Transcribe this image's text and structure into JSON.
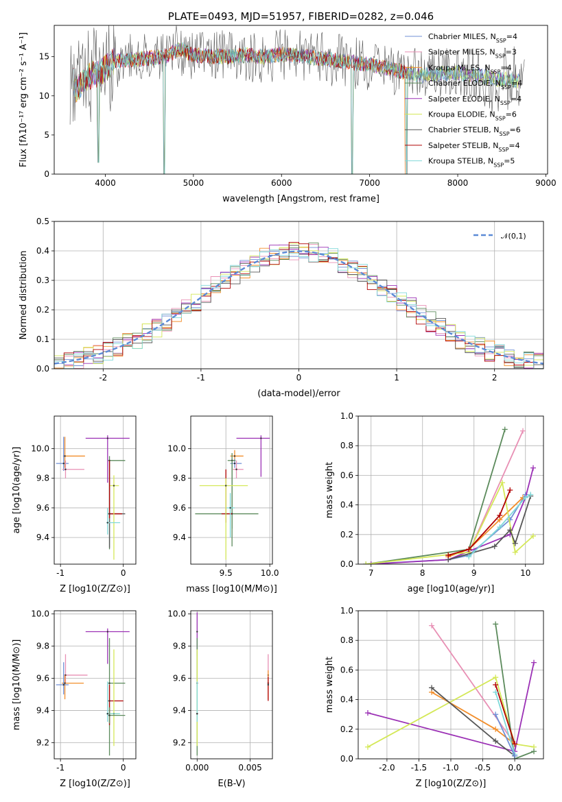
{
  "chart_data": [
    {
      "id": "spectrum",
      "type": "line",
      "title": "PLATE=0493, MJD=51957, FIBERID=0282, z=0.046",
      "xlabel": "wavelength [Angstrom, rest frame]",
      "ylabel": "Flux [f_λ10^{-17} erg cm^{-2} s^{-1} A^{-1}]",
      "xlim": [
        3420,
        9020
      ],
      "ylim": [
        0,
        19
      ],
      "xticks": [
        "4000",
        "5000",
        "6000",
        "7000",
        "8000",
        "9000"
      ],
      "yticks": [
        "0",
        "5",
        "10",
        "15"
      ],
      "legend_position": "upper right",
      "legend": [
        {
          "label": "Chabrier MILES, N_SSP=4",
          "color": "#6f8fd6"
        },
        {
          "label": "Salpeter MILES, N_SSP=3",
          "color": "#e88fb4"
        },
        {
          "label": "Kroupa MILES, N_SSP=4",
          "color": "#f28e2b"
        },
        {
          "label": "Chabrier ELODIE, N_SSP=4",
          "color": "#5b8a5b"
        },
        {
          "label": "Salpeter ELODIE, N_SSP=4",
          "color": "#9b30b5"
        },
        {
          "label": "Kroupa ELODIE, N_SSP=6",
          "color": "#d4e857"
        },
        {
          "label": "Chabrier STELIB, N_SSP=6",
          "color": "#555555"
        },
        {
          "label": "Salpeter STELIB, N_SSP=4",
          "color": "#b00000"
        },
        {
          "label": "Kroupa STELIB, N_SSP=5",
          "color": "#7fd8d8"
        }
      ],
      "continuum": {
        "wavelength": [
          3650,
          3800,
          3950,
          4100,
          4300,
          4500,
          4700,
          4850,
          5000,
          5200,
          5400,
          5600,
          5800,
          6000,
          6200,
          6400,
          6600,
          6800,
          7000,
          7200,
          7400,
          7600,
          7800,
          8000,
          8200,
          8400,
          8600,
          8800
        ],
        "flux": [
          10.5,
          12.5,
          13.0,
          14.5,
          14.6,
          14.8,
          15.1,
          16.0,
          15.2,
          15.0,
          15.0,
          15.2,
          15.0,
          15.3,
          15.1,
          14.8,
          14.6,
          14.2,
          14.0,
          13.5,
          13.0,
          12.6,
          12.8,
          12.9,
          12.7,
          12.2,
          12.0,
          11.8
        ]
      },
      "dips": [
        {
          "wavelength": 3920,
          "flux": 1.5
        },
        {
          "wavelength": 4670,
          "flux": 0
        },
        {
          "wavelength": 6800,
          "flux": 0
        },
        {
          "wavelength": 7420,
          "flux": 0
        }
      ]
    },
    {
      "id": "residuals",
      "type": "line",
      "xlabel": "(data-model)/error",
      "ylabel": "Normed distribution",
      "xlim": [
        -2.5,
        2.5
      ],
      "ylim": [
        0,
        0.5
      ],
      "xticks": [
        "-2",
        "-1",
        "0",
        "1",
        "2"
      ],
      "yticks": [
        "0.0",
        "0.1",
        "0.2",
        "0.3",
        "0.4",
        "0.5"
      ],
      "grid": true,
      "legend_position": "upper right",
      "series": [
        {
          "name": "𝒩(0,1)",
          "kind": "gaussian",
          "mu": 0,
          "sigma": 1,
          "color": "#5b8ad6"
        }
      ]
    },
    {
      "id": "z_age",
      "type": "scatter",
      "xlabel": "Z [log10(Z/Z⊙)]",
      "ylabel": "age  [log10(age/yr)]",
      "xlim": [
        -1.1,
        0.2
      ],
      "ylim": [
        9.22,
        10.22
      ],
      "xticks": [
        "-1",
        "0"
      ],
      "yticks": [
        "9.4",
        "9.6",
        "9.8",
        "10.0"
      ],
      "grid": true,
      "points": [
        {
          "x": -0.93,
          "y": 9.95,
          "xerr": [
            0.03,
            0.32
          ],
          "yerr": [
            0.08,
            0.13
          ],
          "color": "#f28e2b"
        },
        {
          "x": -0.95,
          "y": 9.9,
          "xerr": [
            0.12,
            0.08
          ],
          "yerr": [
            0.05,
            0.18
          ],
          "color": "#6f8fd6"
        },
        {
          "x": -0.92,
          "y": 9.86,
          "xerr": [
            0.05,
            0.3
          ],
          "yerr": [
            0.06,
            0.06
          ],
          "color": "#e88fb4"
        },
        {
          "x": -0.25,
          "y": 10.07,
          "xerr": [
            0.35,
            0.35
          ],
          "yerr": [
            0.3,
            0.02
          ],
          "color": "#9b30b5"
        },
        {
          "x": -0.22,
          "y": 9.92,
          "xerr": [
            0.02,
            0.25
          ],
          "yerr": [
            0.6,
            0.03
          ],
          "color": "#5b8a5b"
        },
        {
          "x": -0.22,
          "y": 9.56,
          "xerr": [
            0.02,
            0.25
          ],
          "yerr": [
            0.23,
            0.36
          ],
          "color": "#555555"
        },
        {
          "x": -0.22,
          "y": 9.56,
          "xerr": [
            0.02,
            0.2
          ],
          "yerr": [
            0.03,
            0.36
          ],
          "color": "#b00000"
        },
        {
          "x": -0.15,
          "y": 9.75,
          "xerr": [
            0.06,
            0.08
          ],
          "yerr": [
            0.5,
            0.07
          ],
          "color": "#d4e857"
        },
        {
          "x": -0.25,
          "y": 9.5,
          "xerr": [
            0.02,
            0.2
          ],
          "yerr": [
            0.08,
            0.1
          ],
          "color": "#7fd8d8"
        }
      ]
    },
    {
      "id": "mass_age",
      "type": "scatter",
      "xlabel": "mass [log10(M/M⊙)]",
      "ylabel": "",
      "xlim": [
        9.1,
        10.03
      ],
      "ylim": [
        9.22,
        10.22
      ],
      "xticks": [
        "9.5",
        "10.0"
      ],
      "yticks": [
        "9.4",
        "9.6",
        "9.8",
        "10.0"
      ],
      "grid": true,
      "points": [
        {
          "x": 9.6,
          "y": 9.95,
          "xerr": [
            0.05,
            0.1
          ],
          "yerr": [
            0.05,
            0.04
          ],
          "color": "#f28e2b"
        },
        {
          "x": 9.6,
          "y": 9.9,
          "xerr": [
            0.05,
            0.08
          ],
          "yerr": [
            0.03,
            0.03
          ],
          "color": "#6f8fd6"
        },
        {
          "x": 9.62,
          "y": 9.86,
          "xerr": [
            0.04,
            0.08
          ],
          "yerr": [
            0.06,
            0.06
          ],
          "color": "#e88fb4"
        },
        {
          "x": 9.9,
          "y": 10.07,
          "xerr": [
            0.28,
            0.1
          ],
          "yerr": [
            0.26,
            0.02
          ],
          "color": "#9b30b5"
        },
        {
          "x": 9.57,
          "y": 9.92,
          "xerr": [
            0.05,
            0.04
          ],
          "yerr": [
            0.58,
            0.05
          ],
          "color": "#5b8a5b"
        },
        {
          "x": 9.57,
          "y": 9.56,
          "xerr": [
            0.42,
            0.3
          ],
          "yerr": [
            0.1,
            0.36
          ],
          "color": "#5b8a5b"
        },
        {
          "x": 9.5,
          "y": 9.56,
          "xerr": [
            0.05,
            0.07
          ],
          "yerr": [
            0.06,
            0.3
          ],
          "color": "#b00000"
        },
        {
          "x": 9.5,
          "y": 9.75,
          "xerr": [
            0.3,
            0.25
          ],
          "yerr": [
            0.5,
            0.05
          ],
          "color": "#d4e857"
        },
        {
          "x": 9.55,
          "y": 9.6,
          "xerr": [
            0.04,
            0.05
          ],
          "yerr": [
            0.2,
            0.1
          ],
          "color": "#7fd8d8"
        }
      ]
    },
    {
      "id": "age_weight",
      "type": "line",
      "xlabel": "age  [log10(age/yr)]",
      "ylabel": "mass weight",
      "xlim": [
        6.75,
        10.35
      ],
      "ylim": [
        0,
        1.0
      ],
      "xticks": [
        "7",
        "8",
        "9",
        "10"
      ],
      "yticks": [
        "0.0",
        "0.2",
        "0.4",
        "0.6",
        "0.8",
        "1.0"
      ],
      "grid": true,
      "series": [
        {
          "color": "#6f8fd6",
          "x": [
            6.9,
            8.5,
            8.9,
            9.7,
            10.0
          ],
          "y": [
            0.0,
            0.03,
            0.06,
            0.3,
            0.47
          ]
        },
        {
          "color": "#e88fb4",
          "x": [
            8.9,
            9.95
          ],
          "y": [
            0.08,
            0.9
          ]
        },
        {
          "color": "#f28e2b",
          "x": [
            8.5,
            8.9,
            9.5,
            9.95
          ],
          "y": [
            0.05,
            0.1,
            0.3,
            0.45
          ]
        },
        {
          "color": "#5b8a5b",
          "x": [
            6.9,
            8.9,
            9.6
          ],
          "y": [
            0.0,
            0.1,
            0.91
          ]
        },
        {
          "color": "#9b30b5",
          "x": [
            7.0,
            8.5,
            9.7,
            10.0,
            10.15
          ],
          "y": [
            0.0,
            0.03,
            0.2,
            0.45,
            0.65
          ]
        },
        {
          "color": "#d4e857",
          "x": [
            6.9,
            8.9,
            9.55,
            9.8,
            10.15
          ],
          "y": [
            0.0,
            0.08,
            0.55,
            0.08,
            0.19
          ]
        },
        {
          "color": "#555555",
          "x": [
            8.5,
            9.4,
            9.7,
            9.8,
            10.1
          ],
          "y": [
            0.03,
            0.12,
            0.23,
            0.14,
            0.46
          ]
        },
        {
          "color": "#b00000",
          "x": [
            8.5,
            8.9,
            9.5,
            9.7
          ],
          "y": [
            0.06,
            0.1,
            0.33,
            0.5
          ]
        },
        {
          "color": "#7fd8d8",
          "x": [
            8.9,
            9.5,
            10.0,
            10.1
          ],
          "y": [
            0.05,
            0.25,
            0.45,
            0.47
          ]
        }
      ]
    },
    {
      "id": "z_mass",
      "type": "scatter",
      "xlabel": "Z [log10(Z/Z⊙)]",
      "ylabel": "mass [log10(M/M⊙)]",
      "xlim": [
        -1.1,
        0.2
      ],
      "ylim": [
        9.1,
        10.02
      ],
      "xticks": [
        "-1",
        "0"
      ],
      "yticks": [
        "9.2",
        "9.4",
        "9.6",
        "9.8",
        "10.0"
      ],
      "grid": true,
      "points": [
        {
          "x": -0.92,
          "y": 9.62,
          "xerr": [
            0.03,
            0.35
          ],
          "yerr": [
            0.05,
            0.13
          ],
          "color": "#e88fb4"
        },
        {
          "x": -0.93,
          "y": 9.57,
          "xerr": [
            0.05,
            0.3
          ],
          "yerr": [
            0.1,
            0.05
          ],
          "color": "#f28e2b"
        },
        {
          "x": -0.95,
          "y": 9.56,
          "xerr": [
            0.12,
            0.08
          ],
          "yerr": [
            0.06,
            0.14
          ],
          "color": "#6f8fd6"
        },
        {
          "x": -0.25,
          "y": 9.89,
          "xerr": [
            0.35,
            0.35
          ],
          "yerr": [
            0.2,
            0.02
          ],
          "color": "#9b30b5"
        },
        {
          "x": -0.22,
          "y": 9.57,
          "xerr": [
            0.02,
            0.25
          ],
          "yerr": [
            0.45,
            0.28
          ],
          "color": "#5b8a5b"
        },
        {
          "x": -0.22,
          "y": 9.46,
          "xerr": [
            0.02,
            0.22
          ],
          "yerr": [
            0.15,
            0.1
          ],
          "color": "#b00000"
        },
        {
          "x": -0.15,
          "y": 9.38,
          "xerr": [
            0.06,
            0.08
          ],
          "yerr": [
            0.2,
            0.4
          ],
          "color": "#d4e857"
        },
        {
          "x": -0.25,
          "y": 9.38,
          "xerr": [
            0.02,
            0.2
          ],
          "yerr": [
            0.05,
            0.2
          ],
          "color": "#7fd8d8"
        },
        {
          "x": -0.22,
          "y": 9.37,
          "xerr": [
            0.02,
            0.25
          ],
          "yerr": [
            0.05,
            0.05
          ],
          "color": "#5b8a5b"
        }
      ]
    },
    {
      "id": "ebv_mass",
      "type": "scatter",
      "xlabel": "E(B-V)",
      "ylabel": "",
      "xlim": [
        -0.0006,
        0.0071
      ],
      "ylim": [
        9.1,
        10.02
      ],
      "xticks": [
        "0.000",
        "0.005"
      ],
      "yticks": [
        "9.2",
        "9.4",
        "9.6",
        "9.8",
        "10.0"
      ],
      "grid": true,
      "points": [
        {
          "x": 0.0,
          "y": 9.89,
          "xerr": [
            0,
            0
          ],
          "yerr": [
            0.15,
            0.12
          ],
          "color": "#9b30b5"
        },
        {
          "x": 0.0,
          "y": 9.57,
          "xerr": [
            0,
            0
          ],
          "yerr": [
            0.45,
            0.28
          ],
          "color": "#5b8a5b"
        },
        {
          "x": 0.0,
          "y": 9.38,
          "xerr": [
            0,
            0
          ],
          "yerr": [
            0.2,
            0.4
          ],
          "color": "#d4e857"
        },
        {
          "x": 0.0,
          "y": 9.38,
          "xerr": [
            0,
            0
          ],
          "yerr": [
            0.05,
            0.2
          ],
          "color": "#7fd8d8"
        },
        {
          "x": 0.0067,
          "y": 9.62,
          "xerr": [
            0,
            0
          ],
          "yerr": [
            0.06,
            0.13
          ],
          "color": "#e88fb4"
        },
        {
          "x": 0.0067,
          "y": 9.57,
          "xerr": [
            0,
            0
          ],
          "yerr": [
            0.1,
            0.08
          ],
          "color": "#f28e2b"
        },
        {
          "x": 0.0067,
          "y": 9.56,
          "xerr": [
            0,
            0
          ],
          "yerr": [
            0.1,
            0.05
          ],
          "color": "#b00000"
        }
      ]
    },
    {
      "id": "z_weight",
      "type": "line",
      "xlabel": "Z [log10(Z/Z⊙)]",
      "ylabel": "mass weight",
      "xlim": [
        -2.45,
        0.45
      ],
      "ylim": [
        0,
        1.0
      ],
      "xticks": [
        "-2.0",
        "-1.5",
        "-1.0",
        "-0.5",
        "0.0"
      ],
      "yticks": [
        "0.0",
        "0.2",
        "0.4",
        "0.6",
        "0.8",
        "1.0"
      ],
      "grid": true,
      "series": [
        {
          "color": "#e88fb4",
          "x": [
            -1.3,
            0.0
          ],
          "y": [
            0.9,
            0.1
          ]
        },
        {
          "color": "#9b30b5",
          "x": [
            -2.3,
            0.0,
            0.3
          ],
          "y": [
            0.31,
            0.05,
            0.65
          ]
        },
        {
          "color": "#d4e857",
          "x": [
            -2.3,
            -0.3,
            0.0,
            0.3
          ],
          "y": [
            0.08,
            0.55,
            0.1,
            0.08
          ]
        },
        {
          "color": "#5b8a5b",
          "x": [
            -0.3,
            0.0,
            0.3
          ],
          "y": [
            0.91,
            0.0,
            0.05
          ]
        },
        {
          "color": "#f28e2b",
          "x": [
            -1.3,
            -0.3,
            0.0
          ],
          "y": [
            0.45,
            0.2,
            0.1
          ]
        },
        {
          "color": "#555555",
          "x": [
            -1.3,
            -0.3,
            0.0
          ],
          "y": [
            0.48,
            0.12,
            0.02
          ]
        },
        {
          "color": "#b00000",
          "x": [
            -0.3,
            0.0
          ],
          "y": [
            0.5,
            0.1
          ]
        },
        {
          "color": "#7fd8d8",
          "x": [
            -0.3,
            0.0
          ],
          "y": [
            0.45,
            0.03
          ]
        },
        {
          "color": "#6f8fd6",
          "x": [
            -0.3,
            0.0
          ],
          "y": [
            0.3,
            0.02
          ]
        }
      ]
    }
  ]
}
